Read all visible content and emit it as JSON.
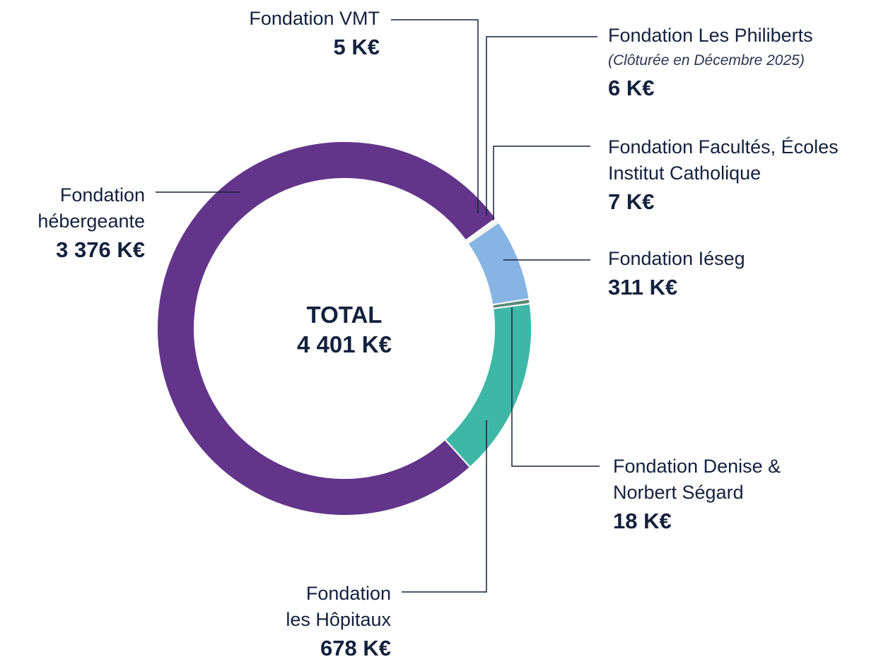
{
  "chart_data": {
    "type": "donut",
    "categories": [
      "Fondation VMT",
      "Fondation Les Philiberts",
      "Fondation Facultés, Écoles Institut Catholique",
      "Fondation Iéseg",
      "Fondation Denise & Norbert Ségard",
      "Fondation les Hôpitaux",
      "Fondation hébergeante"
    ],
    "values": [
      5,
      6,
      7,
      311,
      18,
      678,
      3376
    ],
    "value_labels": [
      "5 K€",
      "6 K€",
      "7 K€",
      "311 K€",
      "18 K€",
      "678 K€",
      "3 376 K€"
    ],
    "colors": [
      "#e0474c",
      "#eee8e2",
      "#b99f80",
      "#86b4e3",
      "#5b8a77",
      "#3fb7a7",
      "#62358a"
    ],
    "annotation": "(Clôturée en Décembre 2025)",
    "center_title": "TOTAL",
    "center_label": "4 401 K€"
  }
}
